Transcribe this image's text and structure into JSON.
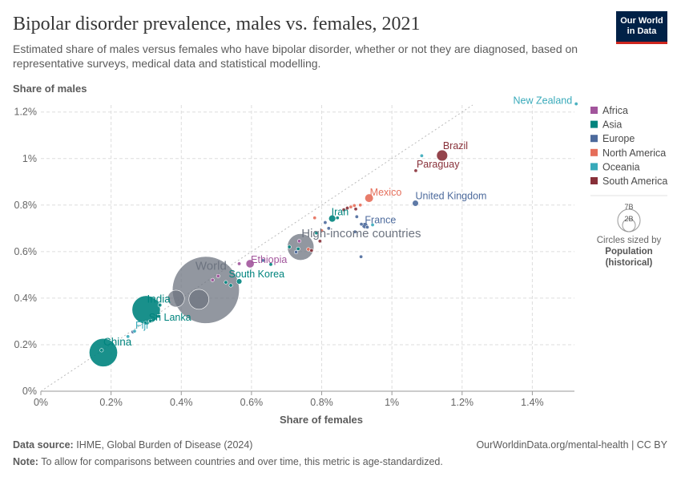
{
  "header": {
    "title": "Bipolar disorder prevalence, males vs. females, 2021",
    "subtitle": "Estimated share of males versus females who have bipolar disorder, whether or not they are diagnosed, based on representative surveys, medical data and statistical modelling.",
    "logo_line1": "Our World",
    "logo_line2": "in Data"
  },
  "legend": {
    "items": [
      {
        "label": "Africa",
        "color": "#a2559c"
      },
      {
        "label": "Asia",
        "color": "#00847e"
      },
      {
        "label": "Europe",
        "color": "#4c6a9c"
      },
      {
        "label": "North America",
        "color": "#e56e5a"
      },
      {
        "label": "Oceania",
        "color": "#38aaba"
      },
      {
        "label": "South America",
        "color": "#883039"
      }
    ],
    "size_big": "7B",
    "size_small": "2B",
    "size_caption": "Circles sized by",
    "size_variable_line1": "Population",
    "size_variable_line2": "(historical)"
  },
  "footer": {
    "source_label": "Data source:",
    "source_text": "IHME, Global Burden of Disease (2024)",
    "note_label": "Note:",
    "note_text": "To allow for comparisons between countries and over time, this metric is age-standardized.",
    "right_text": "OurWorldinData.org/mental-health | CC BY"
  },
  "chart_data": {
    "type": "scatter",
    "title": "Bipolar disorder prevalence, males vs. females, 2021",
    "xlabel": "Share of females",
    "ylabel": "Share of males",
    "xlim": [
      0,
      1.52
    ],
    "ylim": [
      0,
      1.23
    ],
    "x_ticks": [
      0,
      0.2,
      0.4,
      0.6,
      0.8,
      1.0,
      1.2,
      1.4
    ],
    "x_tick_labels": [
      "0%",
      "0.2%",
      "0.4%",
      "0.6%",
      "0.8%",
      "1%",
      "1.2%",
      "1.4%"
    ],
    "y_ticks": [
      0,
      0.2,
      0.4,
      0.6,
      0.8,
      1.0,
      1.2
    ],
    "y_tick_labels": [
      "0%",
      "0.2%",
      "0.4%",
      "0.6%",
      "0.8%",
      "1%",
      "1.2%"
    ],
    "grid": true,
    "reference_line": "y = x",
    "legend_position": "right",
    "points": [
      {
        "label": "New Zealand",
        "x": 1.525,
        "y": 1.235,
        "region": "Oceania",
        "pop": 5,
        "labeled": true
      },
      {
        "label": "Brazil",
        "x": 1.143,
        "y": 1.013,
        "region": "South America",
        "pop": 214,
        "labeled": true
      },
      {
        "label": "Paraguay",
        "x": 1.068,
        "y": 0.948,
        "region": "South America",
        "pop": 7,
        "labeled": true
      },
      {
        "label": "Mexico",
        "x": 0.935,
        "y": 0.83,
        "region": "North America",
        "pop": 127,
        "labeled": true
      },
      {
        "label": "United Kingdom",
        "x": 1.067,
        "y": 0.808,
        "region": "Europe",
        "pop": 67,
        "labeled": true
      },
      {
        "label": "Iran",
        "x": 0.83,
        "y": 0.742,
        "region": "Asia",
        "pop": 88,
        "labeled": true
      },
      {
        "label": "France",
        "x": 0.923,
        "y": 0.712,
        "region": "Europe",
        "pop": 65,
        "labeled": true
      },
      {
        "label": "High-income countries",
        "x": 0.74,
        "y": 0.62,
        "region": "aggregate",
        "pop": 1250,
        "labeled": true
      },
      {
        "label": "Ethiopia",
        "x": 0.596,
        "y": 0.548,
        "region": "Africa",
        "pop": 120,
        "labeled": true
      },
      {
        "label": "World",
        "x": 0.47,
        "y": 0.435,
        "region": "aggregate",
        "pop": 7900,
        "labeled": true
      },
      {
        "label": "South Korea",
        "x": 0.565,
        "y": 0.472,
        "region": "Asia",
        "pop": 52,
        "labeled": true
      },
      {
        "label": "India",
        "x": 0.3,
        "y": 0.35,
        "region": "Asia",
        "pop": 1408,
        "labeled": true
      },
      {
        "label": "Sri Lanka",
        "x": 0.303,
        "y": 0.293,
        "region": "Asia",
        "pop": 22,
        "labeled": true
      },
      {
        "label": "Fiji",
        "x": 0.267,
        "y": 0.258,
        "region": "Oceania",
        "pop": 1,
        "labeled": true
      },
      {
        "label": "China",
        "x": 0.178,
        "y": 0.166,
        "region": "Asia",
        "pop": 1412,
        "labeled": true
      },
      {
        "label": "",
        "x": 1.085,
        "y": 1.012,
        "region": "Oceania",
        "pop": 3,
        "labeled": false
      },
      {
        "label": "",
        "x": 0.873,
        "y": 0.787,
        "region": "South America",
        "pop": 5,
        "labeled": false
      },
      {
        "label": "",
        "x": 0.883,
        "y": 0.792,
        "region": "North America",
        "pop": 5,
        "labeled": false
      },
      {
        "label": "",
        "x": 0.893,
        "y": 0.798,
        "region": "North America",
        "pop": 5,
        "labeled": false
      },
      {
        "label": "",
        "x": 0.897,
        "y": 0.783,
        "region": "South America",
        "pop": 5,
        "labeled": false
      },
      {
        "label": "",
        "x": 0.91,
        "y": 0.8,
        "region": "North America",
        "pop": 5,
        "labeled": false
      },
      {
        "label": "",
        "x": 0.863,
        "y": 0.78,
        "region": "South America",
        "pop": 5,
        "labeled": false
      },
      {
        "label": "",
        "x": 0.78,
        "y": 0.745,
        "region": "North America",
        "pop": 5,
        "labeled": false
      },
      {
        "label": "",
        "x": 0.81,
        "y": 0.725,
        "region": "Europe",
        "pop": 5,
        "labeled": false
      },
      {
        "label": "",
        "x": 0.8,
        "y": 0.69,
        "region": "North America",
        "pop": 5,
        "labeled": false
      },
      {
        "label": "",
        "x": 0.82,
        "y": 0.7,
        "region": "Europe",
        "pop": 5,
        "labeled": false
      },
      {
        "label": "",
        "x": 0.845,
        "y": 0.745,
        "region": "Asia",
        "pop": 5,
        "labeled": false
      },
      {
        "label": "",
        "x": 0.9,
        "y": 0.75,
        "region": "Europe",
        "pop": 5,
        "labeled": false
      },
      {
        "label": "",
        "x": 0.913,
        "y": 0.718,
        "region": "Europe",
        "pop": 5,
        "labeled": false
      },
      {
        "label": "",
        "x": 0.93,
        "y": 0.705,
        "region": "Europe",
        "pop": 5,
        "labeled": false
      },
      {
        "label": "",
        "x": 0.945,
        "y": 0.715,
        "region": "Oceania",
        "pop": 5,
        "labeled": false
      },
      {
        "label": "",
        "x": 0.895,
        "y": 0.685,
        "region": "Europe",
        "pop": 5,
        "labeled": false
      },
      {
        "label": "",
        "x": 0.912,
        "y": 0.578,
        "region": "Europe",
        "pop": 5,
        "labeled": false
      },
      {
        "label": "",
        "x": 0.795,
        "y": 0.645,
        "region": "South America",
        "pop": 5,
        "labeled": false
      },
      {
        "label": "",
        "x": 0.785,
        "y": 0.68,
        "region": "Asia",
        "pop": 5,
        "labeled": false
      },
      {
        "label": "",
        "x": 0.762,
        "y": 0.61,
        "region": "North America",
        "pop": 5,
        "labeled": false
      },
      {
        "label": "",
        "x": 0.771,
        "y": 0.605,
        "region": "South America",
        "pop": 5,
        "labeled": false
      },
      {
        "label": "",
        "x": 0.727,
        "y": 0.598,
        "region": "Europe",
        "pop": 5,
        "labeled": false
      },
      {
        "label": "",
        "x": 0.708,
        "y": 0.62,
        "region": "Asia",
        "pop": 5,
        "labeled": false
      },
      {
        "label": "",
        "x": 0.736,
        "y": 0.645,
        "region": "Africa",
        "pop": 5,
        "labeled": false
      },
      {
        "label": "",
        "x": 0.633,
        "y": 0.562,
        "region": "Europe",
        "pop": 5,
        "labeled": false
      },
      {
        "label": "",
        "x": 0.655,
        "y": 0.545,
        "region": "Asia",
        "pop": 5,
        "labeled": false
      },
      {
        "label": "",
        "x": 0.733,
        "y": 0.612,
        "region": "Asia",
        "pop": 5,
        "labeled": false
      },
      {
        "label": "",
        "x": 0.565,
        "y": 0.548,
        "region": "Africa",
        "pop": 5,
        "labeled": false
      },
      {
        "label": "",
        "x": 0.505,
        "y": 0.495,
        "region": "Africa",
        "pop": 10,
        "labeled": false
      },
      {
        "label": "",
        "x": 0.527,
        "y": 0.468,
        "region": "Asia",
        "pop": 10,
        "labeled": false
      },
      {
        "label": "",
        "x": 0.489,
        "y": 0.478,
        "region": "Africa",
        "pop": 5,
        "labeled": false
      },
      {
        "label": "",
        "x": 0.541,
        "y": 0.455,
        "region": "Asia",
        "pop": 5,
        "labeled": false
      },
      {
        "label": "",
        "x": 0.385,
        "y": 0.398,
        "region": "aggregate",
        "pop": 500,
        "labeled": false
      },
      {
        "label": "",
        "x": 0.45,
        "y": 0.395,
        "region": "aggregate",
        "pop": 700,
        "labeled": false
      },
      {
        "label": "",
        "x": 0.339,
        "y": 0.37,
        "region": "Asia",
        "pop": 25,
        "labeled": false
      },
      {
        "label": "",
        "x": 0.335,
        "y": 0.322,
        "region": "Asia",
        "pop": 5,
        "labeled": false
      },
      {
        "label": "",
        "x": 0.312,
        "y": 0.302,
        "region": "Asia",
        "pop": 5,
        "labeled": false
      },
      {
        "label": "",
        "x": 0.298,
        "y": 0.293,
        "region": "Asia",
        "pop": 5,
        "labeled": false
      },
      {
        "label": "",
        "x": 0.262,
        "y": 0.255,
        "region": "Europe",
        "pop": 5,
        "labeled": false
      },
      {
        "label": "",
        "x": 0.248,
        "y": 0.235,
        "region": "Oceania",
        "pop": 5,
        "labeled": false
      },
      {
        "label": "",
        "x": 0.173,
        "y": 0.176,
        "region": "Asia",
        "pop": 5,
        "labeled": false
      }
    ]
  }
}
